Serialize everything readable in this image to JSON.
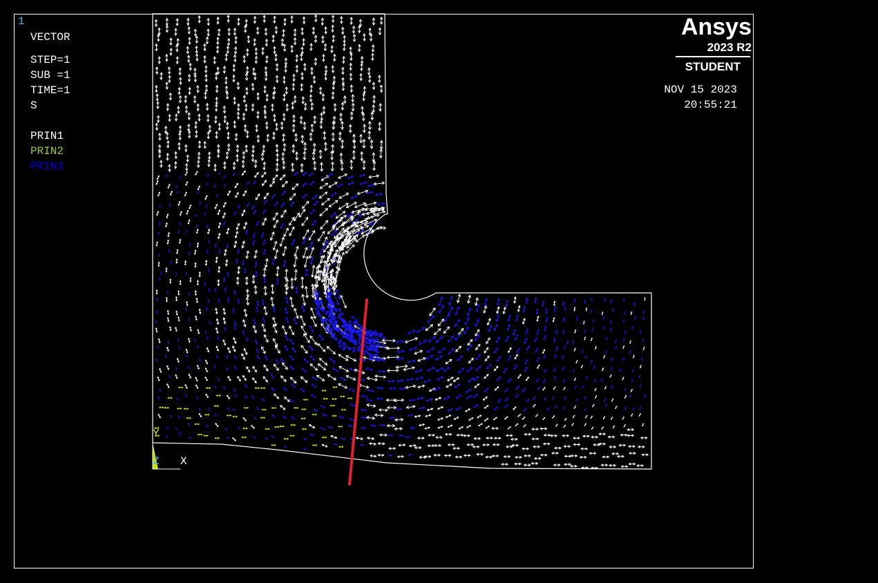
{
  "window_number": "1",
  "legend": {
    "plot_type": "VECTOR",
    "step": "STEP=1",
    "sub": "SUB =1",
    "time": "TIME=1",
    "item": "S",
    "components": [
      {
        "label": "PRIN1",
        "color": "#ffffff"
      },
      {
        "label": "PRIN2",
        "color": "#9acd32"
      },
      {
        "label": "PRIN3",
        "color": "#0000e6"
      }
    ]
  },
  "logo": {
    "brand": "Ansys",
    "version": "2023 R2",
    "edition": "STUDENT"
  },
  "timestamp": {
    "date": "NOV 15 2023",
    "time": "20:55:21"
  },
  "triad": {
    "y_label": "Y",
    "z_label": "Z",
    "x_label": "X"
  },
  "colors": {
    "background": "#000000",
    "outline": "#ffffff",
    "prin1": "#ffffff",
    "prin2": "#c8e000",
    "prin3": "#1a1aff",
    "section_line": "#e0202a",
    "window_number": "#4fb3e8"
  }
}
